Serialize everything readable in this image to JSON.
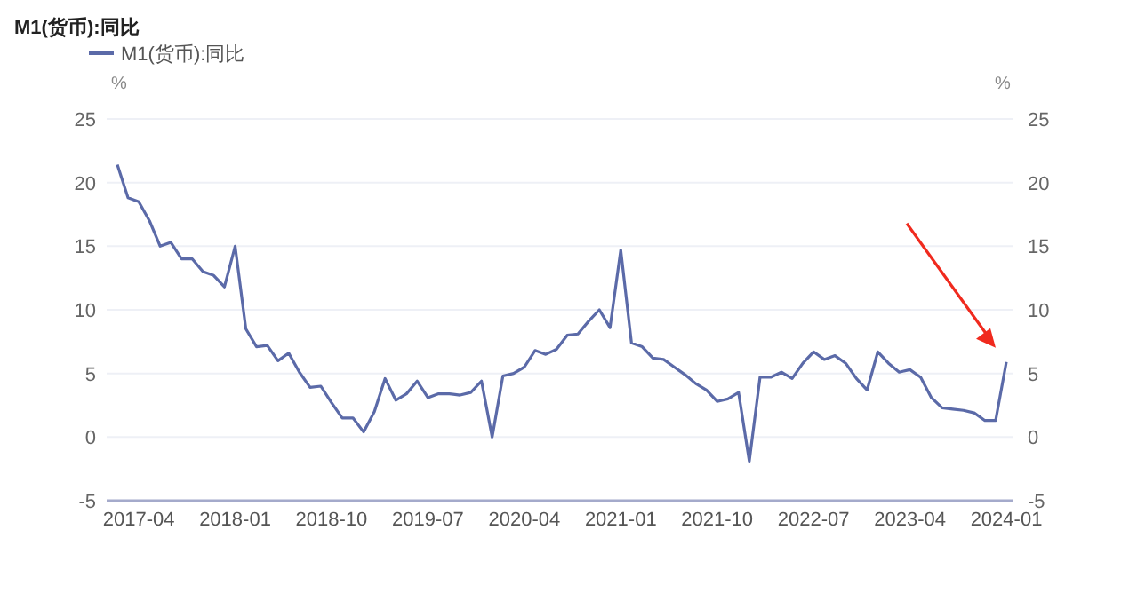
{
  "chart_data": {
    "type": "line",
    "title": "M1(货币):同比",
    "ylabel": "%",
    "y2label": "%",
    "categories": [
      null,
      null,
      "2017-04",
      null,
      null,
      null,
      null,
      null,
      null,
      null,
      null,
      "2018-01",
      null,
      null,
      null,
      null,
      null,
      null,
      null,
      null,
      "2018-10",
      null,
      null,
      null,
      null,
      null,
      null,
      null,
      null,
      "2019-07",
      null,
      null,
      null,
      null,
      null,
      null,
      null,
      null,
      "2020-04",
      null,
      null,
      null,
      null,
      null,
      null,
      null,
      null,
      "2021-01",
      null,
      null,
      null,
      null,
      null,
      null,
      null,
      null,
      "2021-10",
      null,
      null,
      null,
      null,
      null,
      null,
      null,
      null,
      "2022-07",
      null,
      null,
      null,
      null,
      null,
      null,
      null,
      null,
      "2023-04",
      null,
      null,
      null,
      null,
      null,
      null,
      null,
      null,
      "2024-01"
    ],
    "series": [
      {
        "name": "M1(货币):同比",
        "color": "#5b6aa8",
        "values": [
          21.4,
          18.8,
          18.5,
          17.0,
          15.0,
          15.3,
          14.0,
          14.0,
          13.0,
          12.7,
          11.8,
          15.0,
          8.5,
          7.1,
          7.2,
          6.0,
          6.6,
          5.1,
          3.9,
          4.0,
          2.7,
          1.5,
          1.5,
          0.4,
          2.0,
          4.6,
          2.9,
          3.4,
          4.4,
          3.1,
          3.4,
          3.4,
          3.3,
          3.5,
          4.4,
          0.0,
          4.8,
          5.0,
          5.5,
          6.8,
          6.5,
          6.9,
          8.0,
          8.1,
          9.1,
          10.0,
          8.6,
          14.7,
          7.4,
          7.1,
          6.2,
          6.1,
          5.5,
          4.9,
          4.2,
          3.7,
          2.8,
          3.0,
          3.5,
          -1.9,
          4.7,
          4.7,
          5.1,
          4.6,
          5.8,
          6.7,
          6.1,
          6.4,
          5.8,
          4.6,
          3.7,
          6.7,
          5.8,
          5.1,
          5.3,
          4.7,
          3.1,
          2.3,
          2.2,
          2.1,
          1.9,
          1.3,
          1.3,
          5.9
        ]
      }
    ],
    "ylim": [
      -5,
      25
    ],
    "yticks": [
      -5,
      0,
      5,
      10,
      15,
      20,
      25
    ],
    "y2lim": [
      -5,
      25
    ],
    "y2ticks": [
      -5,
      0,
      5,
      10,
      15,
      20,
      25
    ],
    "grid": "y",
    "legend": "top left",
    "marker": "none",
    "line_style": "solid"
  }
}
